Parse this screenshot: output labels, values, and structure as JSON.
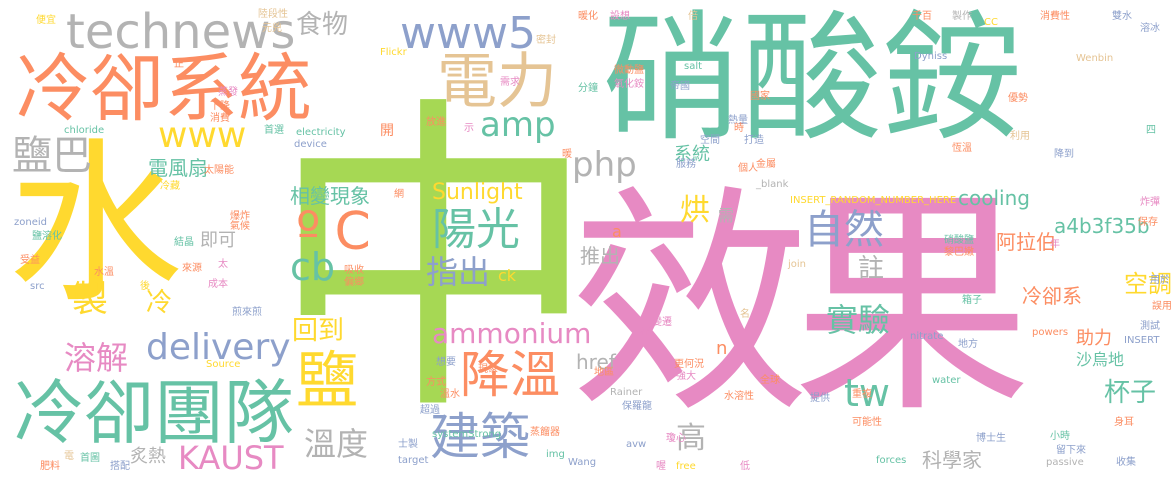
{
  "palette": {
    "teal": "#66c2a5",
    "orange": "#fc8d62",
    "blue": "#8da0cb",
    "pink": "#e78ac3",
    "green": "#a6d854",
    "yellow": "#ffd92f",
    "tan": "#e5c494",
    "gray": "#b3b3b3"
  },
  "words": [
    {
      "text": "水",
      "color": "yellow"
    },
    {
      "text": "中",
      "color": "green"
    },
    {
      "text": "效果",
      "color": "pink"
    },
    {
      "text": "硝酸銨",
      "color": "teal"
    },
    {
      "text": "冷卻系統",
      "color": "orange"
    },
    {
      "text": "technews",
      "color": "gray"
    },
    {
      "text": "電力",
      "color": "tan"
    },
    {
      "text": "www5",
      "color": "blue"
    },
    {
      "text": "食物",
      "color": "gray"
    },
    {
      "text": "冷卻團隊",
      "color": "teal"
    },
    {
      "text": "鹽巴",
      "color": "gray"
    },
    {
      "text": "www",
      "color": "yellow"
    },
    {
      "text": "amp",
      "color": "teal"
    },
    {
      "text": "php",
      "color": "gray"
    },
    {
      "text": "電風扇",
      "color": "teal"
    },
    {
      "text": "相變現象",
      "color": "teal"
    },
    {
      "text": "Sunlight",
      "color": "yellow"
    },
    {
      "text": "ºC",
      "color": "orange"
    },
    {
      "text": "陽光",
      "color": "teal"
    },
    {
      "text": "cb",
      "color": "teal"
    },
    {
      "text": "指出",
      "color": "blue"
    },
    {
      "text": "ck",
      "color": "yellow"
    },
    {
      "text": "即可",
      "color": "gray"
    },
    {
      "text": "自然",
      "color": "blue"
    },
    {
      "text": "cooling",
      "color": "teal"
    },
    {
      "text": "a4b3f35b",
      "color": "teal"
    },
    {
      "text": "系統",
      "color": "teal"
    },
    {
      "text": "製",
      "color": "yellow"
    },
    {
      "text": "冷",
      "color": "yellow"
    },
    {
      "text": "delivery",
      "color": "blue"
    },
    {
      "text": "回到",
      "color": "yellow"
    },
    {
      "text": "ammonium",
      "color": "pink"
    },
    {
      "text": "溶解",
      "color": "pink"
    },
    {
      "text": "鹽",
      "color": "yellow"
    },
    {
      "text": "降溫",
      "color": "orange"
    },
    {
      "text": "實驗",
      "color": "teal"
    },
    {
      "text": "註",
      "color": "gray"
    },
    {
      "text": "烘",
      "color": "yellow"
    },
    {
      "text": "需",
      "color": "gray"
    },
    {
      "text": "推出",
      "color": "gray"
    },
    {
      "text": "阿拉伯",
      "color": "orange"
    },
    {
      "text": "冷卻系",
      "color": "orange"
    },
    {
      "text": "空調",
      "color": "yellow"
    },
    {
      "text": "助力",
      "color": "orange"
    },
    {
      "text": "沙烏地",
      "color": "teal"
    },
    {
      "text": "杯子",
      "color": "teal"
    },
    {
      "text": "tw",
      "color": "teal"
    },
    {
      "text": "href",
      "color": "gray"
    },
    {
      "text": "KAUST",
      "color": "pink"
    },
    {
      "text": "溫度",
      "color": "gray"
    },
    {
      "text": "建築",
      "color": "blue"
    },
    {
      "text": "高",
      "color": "gray"
    },
    {
      "text": "炙熱",
      "color": "gray"
    },
    {
      "text": "科學家",
      "color": "gray"
    },
    {
      "text": "n",
      "color": "orange"
    },
    {
      "text": "a",
      "color": "orange"
    },
    {
      "text": "便宜",
      "color": "yellow"
    },
    {
      "text": "陸段性",
      "color": "tan"
    },
    {
      "text": "元兇",
      "color": "tan"
    },
    {
      "text": "Flickr",
      "color": "yellow"
    },
    {
      "text": "密封",
      "color": "tan"
    },
    {
      "text": "暖化",
      "color": "orange"
    },
    {
      "text": "設想",
      "color": "pink"
    },
    {
      "text": "倍",
      "color": "tan"
    },
    {
      "text": "千百",
      "color": "orange"
    },
    {
      "text": "製作",
      "color": "gray"
    },
    {
      "text": "CC",
      "color": "yellow"
    },
    {
      "text": "消費性",
      "color": "orange"
    },
    {
      "text": "雙水",
      "color": "blue"
    },
    {
      "text": "溶冰",
      "color": "blue"
    },
    {
      "text": "salt",
      "color": "teal"
    },
    {
      "text": "Dyniss",
      "color": "blue"
    },
    {
      "text": "Wenbin",
      "color": "tan"
    },
    {
      "text": "chloride",
      "color": "teal"
    },
    {
      "text": "electricity",
      "color": "teal"
    },
    {
      "text": "device",
      "color": "blue"
    },
    {
      "text": "_blank",
      "color": "gray"
    },
    {
      "text": "INSERT_RANDOM_NUMBER_HERE",
      "color": "yellow"
    },
    {
      "text": "zoneid",
      "color": "blue"
    },
    {
      "text": "src",
      "color": "blue"
    },
    {
      "text": "Source",
      "color": "yellow"
    },
    {
      "text": "systemStrong",
      "color": "teal"
    },
    {
      "text": "target",
      "color": "blue"
    },
    {
      "text": "img",
      "color": "teal"
    },
    {
      "text": "Wang",
      "color": "blue"
    },
    {
      "text": "avw",
      "color": "blue"
    },
    {
      "text": "free",
      "color": "yellow"
    },
    {
      "text": "join",
      "color": "tan"
    },
    {
      "text": "nitrate",
      "color": "blue"
    },
    {
      "text": "powers",
      "color": "orange"
    },
    {
      "text": "water",
      "color": "teal"
    },
    {
      "text": "Rainer",
      "color": "gray"
    },
    {
      "text": "forces",
      "color": "teal"
    },
    {
      "text": "passive",
      "color": "gray"
    },
    {
      "text": "INSERT",
      "color": "blue"
    },
    {
      "text": "冷藏",
      "color": "yellow"
    },
    {
      "text": "太陽能",
      "color": "orange"
    },
    {
      "text": "結晶",
      "color": "teal"
    },
    {
      "text": "來源",
      "color": "orange"
    },
    {
      "text": "成本",
      "color": "pink"
    },
    {
      "text": "水溫",
      "color": "orange"
    },
    {
      "text": "吸收",
      "color": "orange"
    },
    {
      "text": "偏鄉",
      "color": "orange"
    },
    {
      "text": "煎來煎",
      "color": "blue"
    },
    {
      "text": "想要",
      "color": "blue"
    },
    {
      "text": "方式",
      "color": "orange"
    },
    {
      "text": "溫水",
      "color": "orange"
    },
    {
      "text": "超過",
      "color": "blue"
    },
    {
      "text": "蒸餾器",
      "color": "orange"
    },
    {
      "text": "士製",
      "color": "blue"
    },
    {
      "text": "肥料",
      "color": "orange"
    },
    {
      "text": "首圖",
      "color": "teal"
    },
    {
      "text": "搭配",
      "color": "blue"
    },
    {
      "text": "硝酸鹽",
      "color": "teal"
    },
    {
      "text": "黎巴嫩",
      "color": "orange"
    },
    {
      "text": "箱子",
      "color": "teal"
    },
    {
      "text": "保存",
      "color": "orange"
    },
    {
      "text": "測試",
      "color": "blue"
    },
    {
      "text": "水溶性",
      "color": "orange"
    },
    {
      "text": "全球",
      "color": "orange"
    },
    {
      "text": "提供",
      "color": "blue"
    },
    {
      "text": "重複",
      "color": "orange"
    },
    {
      "text": "可能性",
      "color": "orange"
    },
    {
      "text": "博士生",
      "color": "blue"
    },
    {
      "text": "小時",
      "color": "teal"
    },
    {
      "text": "留下來",
      "color": "blue"
    },
    {
      "text": "收集",
      "color": "blue"
    },
    {
      "text": "身耳",
      "color": "orange"
    },
    {
      "text": "地方",
      "color": "blue"
    },
    {
      "text": "保羅龍",
      "color": "blue"
    },
    {
      "text": "強大",
      "color": "pink"
    },
    {
      "text": "更何況",
      "color": "orange"
    },
    {
      "text": "地區",
      "color": "orange"
    },
    {
      "text": "瓊心",
      "color": "pink"
    },
    {
      "text": "變遷",
      "color": "pink"
    },
    {
      "text": "低",
      "color": "pink"
    },
    {
      "text": "恆溫",
      "color": "orange"
    },
    {
      "text": "利用",
      "color": "tan"
    },
    {
      "text": "降到",
      "color": "blue"
    },
    {
      "text": "優勢",
      "color": "orange"
    },
    {
      "text": "熱量",
      "color": "blue"
    },
    {
      "text": "空間",
      "color": "blue"
    },
    {
      "text": "打造",
      "color": "blue"
    },
    {
      "text": "服務",
      "color": "blue"
    },
    {
      "text": "個人",
      "color": "orange"
    },
    {
      "text": "金屬",
      "color": "orange"
    },
    {
      "text": "國家",
      "color": "orange"
    },
    {
      "text": "微動鹽",
      "color": "orange"
    },
    {
      "text": "氧化銨",
      "color": "pink"
    },
    {
      "text": "需求",
      "color": "pink"
    },
    {
      "text": "分鐘",
      "color": "teal"
    },
    {
      "text": "帝國",
      "color": "blue"
    },
    {
      "text": "放進",
      "color": "orange"
    },
    {
      "text": "開",
      "color": "orange"
    },
    {
      "text": "示",
      "color": "pink"
    },
    {
      "text": "現象",
      "color": "orange"
    },
    {
      "text": "網",
      "color": "orange"
    },
    {
      "text": "爆炸",
      "color": "orange"
    },
    {
      "text": "氣候",
      "color": "orange"
    },
    {
      "text": "鹽溶化",
      "color": "teal"
    },
    {
      "text": "受益",
      "color": "orange"
    },
    {
      "text": "首選",
      "color": "teal"
    },
    {
      "text": "下降",
      "color": "orange"
    },
    {
      "text": "消費",
      "color": "orange"
    },
    {
      "text": "蒸發",
      "color": "pink"
    },
    {
      "text": "正",
      "color": "orange"
    },
    {
      "text": "用於",
      "color": "blue"
    },
    {
      "text": "誤用",
      "color": "orange"
    },
    {
      "text": "年",
      "color": "pink"
    },
    {
      "text": "炸彈",
      "color": "pink"
    },
    {
      "text": "時",
      "color": "orange"
    },
    {
      "text": "名",
      "color": "tan"
    },
    {
      "text": "四",
      "color": "teal"
    },
    {
      "text": "太",
      "color": "pink"
    },
    {
      "text": "後",
      "color": "yellow"
    },
    {
      "text": "杯",
      "color": "pink"
    },
    {
      "text": "電",
      "color": "tan"
    },
    {
      "text": "暖",
      "color": "orange"
    },
    {
      "text": "喔",
      "color": "pink"
    }
  ]
}
